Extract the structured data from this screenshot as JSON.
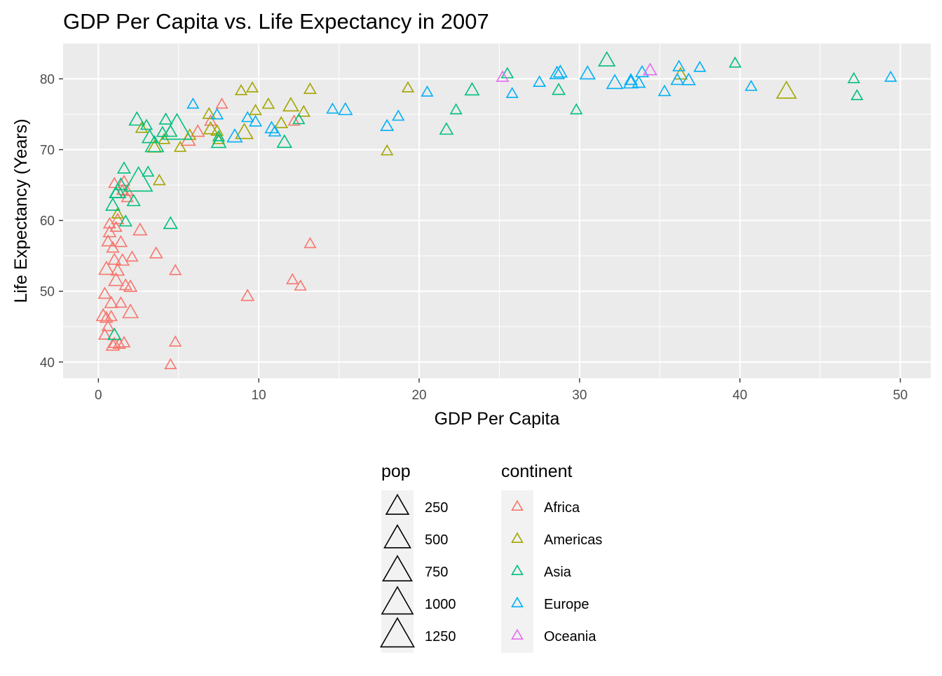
{
  "chart_data": {
    "type": "scatter",
    "title": "GDP Per Capita vs. Life Expectancy in 2007",
    "xlabel": "GDP Per Capita",
    "ylabel": "Life Expectancy (Years)",
    "xlim": [
      -2.2,
      51.9
    ],
    "ylim": [
      37.7,
      85.0
    ],
    "x_ticks": [
      0,
      10,
      20,
      30,
      40,
      50
    ],
    "y_ticks": [
      40,
      50,
      60,
      70,
      80
    ],
    "grid": true,
    "legend_position": "bottom",
    "legends": {
      "size": {
        "title": "pop",
        "items": [
          {
            "label": "250",
            "value": 250
          },
          {
            "label": "500",
            "value": 500
          },
          {
            "label": "750",
            "value": 750
          },
          {
            "label": "1000",
            "value": 1000
          },
          {
            "label": "1250",
            "value": 1250
          }
        ]
      },
      "color": {
        "title": "continent",
        "items": [
          {
            "label": "Africa",
            "color": "#F8766D"
          },
          {
            "label": "Americas",
            "color": "#A3A500"
          },
          {
            "label": "Asia",
            "color": "#00BF7D"
          },
          {
            "label": "Europe",
            "color": "#00B0F6"
          },
          {
            "label": "Oceania",
            "color": "#E76BF3"
          }
        ]
      }
    },
    "series": [
      {
        "name": "Africa",
        "color": "#F8766D",
        "points": [
          [
            0.3,
            46.5,
            40
          ],
          [
            0.4,
            43.8,
            12
          ],
          [
            0.4,
            49.6,
            20
          ],
          [
            0.5,
            46.2,
            15
          ],
          [
            0.6,
            45.0,
            8
          ],
          [
            0.5,
            53.1,
            80
          ],
          [
            0.6,
            57.0,
            15
          ],
          [
            0.7,
            58.3,
            20
          ],
          [
            0.7,
            59.5,
            10
          ],
          [
            0.8,
            48.3,
            25
          ],
          [
            0.8,
            46.4,
            8
          ],
          [
            0.9,
            56.1,
            12
          ],
          [
            0.9,
            42.3,
            30
          ],
          [
            1.0,
            65.2,
            5
          ],
          [
            1.0,
            54.4,
            18
          ],
          [
            1.0,
            42.6,
            6
          ],
          [
            1.1,
            51.5,
            70
          ],
          [
            1.1,
            59.0,
            5
          ],
          [
            1.2,
            52.9,
            30
          ],
          [
            1.2,
            60.1,
            10
          ],
          [
            1.3,
            42.5,
            12
          ],
          [
            1.4,
            56.9,
            15
          ],
          [
            1.4,
            48.3,
            8
          ],
          [
            1.5,
            54.3,
            30
          ],
          [
            1.5,
            64.2,
            3
          ],
          [
            1.6,
            65.5,
            5
          ],
          [
            1.6,
            42.7,
            10
          ],
          [
            1.7,
            50.8,
            15
          ],
          [
            1.8,
            63.2,
            5
          ],
          [
            1.8,
            64.1,
            10
          ],
          [
            2.0,
            50.6,
            25
          ],
          [
            2.0,
            47.0,
            100
          ],
          [
            2.1,
            54.8,
            5
          ],
          [
            2.6,
            58.6,
            40
          ],
          [
            3.6,
            55.3,
            20
          ],
          [
            4.5,
            39.6,
            5
          ],
          [
            4.8,
            52.9,
            5
          ],
          [
            4.8,
            42.8,
            5
          ],
          [
            5.6,
            71.3,
            60
          ],
          [
            6.2,
            72.5,
            30
          ],
          [
            7.0,
            74.0,
            8
          ],
          [
            7.7,
            76.4,
            5
          ],
          [
            9.3,
            49.3,
            20
          ],
          [
            12.1,
            51.6,
            5
          ],
          [
            12.2,
            74.0,
            5
          ],
          [
            12.6,
            50.7,
            5
          ],
          [
            13.2,
            56.7,
            5
          ]
        ]
      },
      {
        "name": "Americas",
        "color": "#A3A500",
        "points": [
          [
            1.2,
            60.9,
            8
          ],
          [
            2.7,
            73.0,
            8
          ],
          [
            3.5,
            70.3,
            40
          ],
          [
            3.8,
            65.6,
            8
          ],
          [
            4.1,
            71.4,
            5
          ],
          [
            5.1,
            70.3,
            5
          ],
          [
            5.7,
            72.0,
            10
          ],
          [
            6.9,
            75.0,
            15
          ],
          [
            7.0,
            72.9,
            45
          ],
          [
            7.4,
            72.6,
            10
          ],
          [
            7.5,
            71.4,
            5
          ],
          [
            8.9,
            78.3,
            5
          ],
          [
            9.1,
            72.4,
            180
          ],
          [
            9.6,
            78.7,
            5
          ],
          [
            9.8,
            75.5,
            5
          ],
          [
            10.6,
            76.4,
            8
          ],
          [
            11.4,
            73.7,
            20
          ],
          [
            12.0,
            76.2,
            90
          ],
          [
            12.8,
            75.3,
            15
          ],
          [
            13.2,
            78.5,
            10
          ],
          [
            18.0,
            69.8,
            5
          ],
          [
            19.3,
            78.7,
            5
          ],
          [
            36.3,
            80.6,
            30
          ],
          [
            42.9,
            78.2,
            300
          ]
        ]
      },
      {
        "name": "Asia",
        "color": "#00BF7D",
        "points": [
          [
            1.0,
            43.8,
            30
          ],
          [
            0.9,
            62.1,
            50
          ],
          [
            1.1,
            63.8,
            15
          ],
          [
            1.2,
            64.0,
            130
          ],
          [
            1.4,
            65.0,
            30
          ],
          [
            1.6,
            67.3,
            20
          ],
          [
            1.7,
            59.8,
            15
          ],
          [
            2.2,
            62.7,
            25
          ],
          [
            2.4,
            74.2,
            90
          ],
          [
            2.5,
            65.5,
            1100
          ],
          [
            3.0,
            73.4,
            5
          ],
          [
            3.1,
            66.8,
            5
          ],
          [
            3.2,
            71.7,
            80
          ],
          [
            3.5,
            70.6,
            230
          ],
          [
            4.0,
            72.4,
            5
          ],
          [
            4.2,
            74.2,
            20
          ],
          [
            4.5,
            72.5,
            25
          ],
          [
            4.5,
            59.5,
            40
          ],
          [
            4.9,
            72.9,
            1300
          ],
          [
            7.5,
            71.0,
            70
          ],
          [
            7.5,
            71.8,
            5
          ],
          [
            11.6,
            71.0,
            60
          ],
          [
            12.5,
            74.2,
            5
          ],
          [
            21.7,
            72.8,
            30
          ],
          [
            22.3,
            75.6,
            5
          ],
          [
            23.3,
            78.4,
            50
          ],
          [
            25.5,
            80.7,
            8
          ],
          [
            28.7,
            78.4,
            20
          ],
          [
            29.8,
            75.6,
            5
          ],
          [
            31.7,
            82.6,
            130
          ],
          [
            39.7,
            82.2,
            5
          ],
          [
            47.1,
            80.0,
            5
          ],
          [
            47.3,
            77.6,
            5
          ]
        ]
      },
      {
        "name": "Europe",
        "color": "#00B0F6",
        "points": [
          [
            5.9,
            76.4,
            5
          ],
          [
            7.4,
            74.9,
            10
          ],
          [
            8.5,
            71.8,
            80
          ],
          [
            9.3,
            74.5,
            5
          ],
          [
            9.8,
            73.9,
            10
          ],
          [
            10.8,
            73.0,
            25
          ],
          [
            11.0,
            72.5,
            10
          ],
          [
            14.6,
            75.7,
            5
          ],
          [
            15.4,
            75.6,
            40
          ],
          [
            18.0,
            73.3,
            20
          ],
          [
            18.7,
            74.7,
            5
          ],
          [
            20.5,
            78.1,
            5
          ],
          [
            25.8,
            77.9,
            5
          ],
          [
            27.5,
            79.5,
            10
          ],
          [
            28.6,
            80.7,
            60
          ],
          [
            28.8,
            80.9,
            40
          ],
          [
            30.5,
            80.7,
            80
          ],
          [
            32.2,
            79.4,
            120
          ],
          [
            33.2,
            79.8,
            15
          ],
          [
            33.7,
            79.4,
            20
          ],
          [
            33.9,
            80.9,
            20
          ],
          [
            33.2,
            79.4,
            60
          ],
          [
            35.3,
            78.2,
            10
          ],
          [
            36.2,
            81.7,
            10
          ],
          [
            36.1,
            79.8,
            20
          ],
          [
            36.8,
            79.8,
            30
          ],
          [
            37.5,
            81.6,
            5
          ],
          [
            40.7,
            78.9,
            5
          ],
          [
            49.4,
            80.2,
            5
          ]
        ]
      },
      {
        "name": "Oceania",
        "color": "#E76BF3",
        "points": [
          [
            25.2,
            80.2,
            10
          ],
          [
            34.4,
            81.2,
            30
          ]
        ]
      }
    ]
  }
}
